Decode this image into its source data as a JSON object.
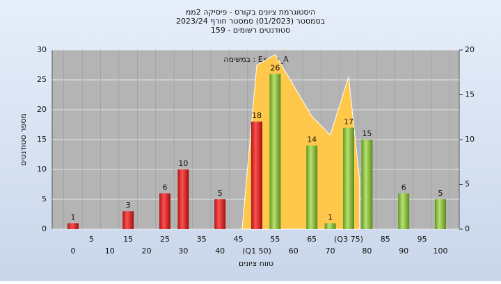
{
  "chart_data": {
    "type": "bar",
    "title": [
      "היסטוגרמת ציונים בקורס - פיסיקה 2ממ",
      "בסמסטר  (01/2023)  סמסטר חורף 2023/24",
      "סטודנטים רשומים - 159"
    ],
    "annotation": "במשימה : Exam_A",
    "x_label": "טווח ציונים",
    "y_label": "מספר סטודנטים",
    "categories": [
      "0",
      "5",
      "10",
      "15",
      "20",
      "25",
      "30",
      "35",
      "40",
      "45",
      "(Q1 50)",
      "55",
      "60",
      "65",
      "70",
      "(Q3 75)",
      "80",
      "85",
      "90",
      "95",
      "100"
    ],
    "series": [
      {
        "color": "#e03030",
        "values": [
          1,
          null,
          null,
          3,
          null,
          6,
          10,
          null,
          5,
          null,
          18,
          null,
          null,
          null,
          null,
          null,
          null,
          null,
          null,
          null,
          null
        ]
      },
      {
        "color": "#8cc43c",
        "values": [
          null,
          null,
          null,
          null,
          null,
          null,
          null,
          null,
          null,
          null,
          null,
          26,
          null,
          14,
          1,
          17,
          15,
          null,
          6,
          null,
          5
        ]
      }
    ],
    "area": {
      "color": "#ffc84a",
      "axis": "y2",
      "x": [
        46,
        50,
        55,
        65,
        70,
        75,
        78
      ],
      "values": [
        0,
        18.3,
        19.5,
        12.6,
        10.5,
        17,
        5.5
      ]
    },
    "ylim": [
      0,
      30
    ],
    "yticks": [
      0,
      5,
      10,
      15,
      20,
      25,
      30
    ],
    "y2lim": [
      0,
      20
    ],
    "y2ticks": [
      0,
      5,
      10,
      15,
      20
    ],
    "grid": true
  }
}
